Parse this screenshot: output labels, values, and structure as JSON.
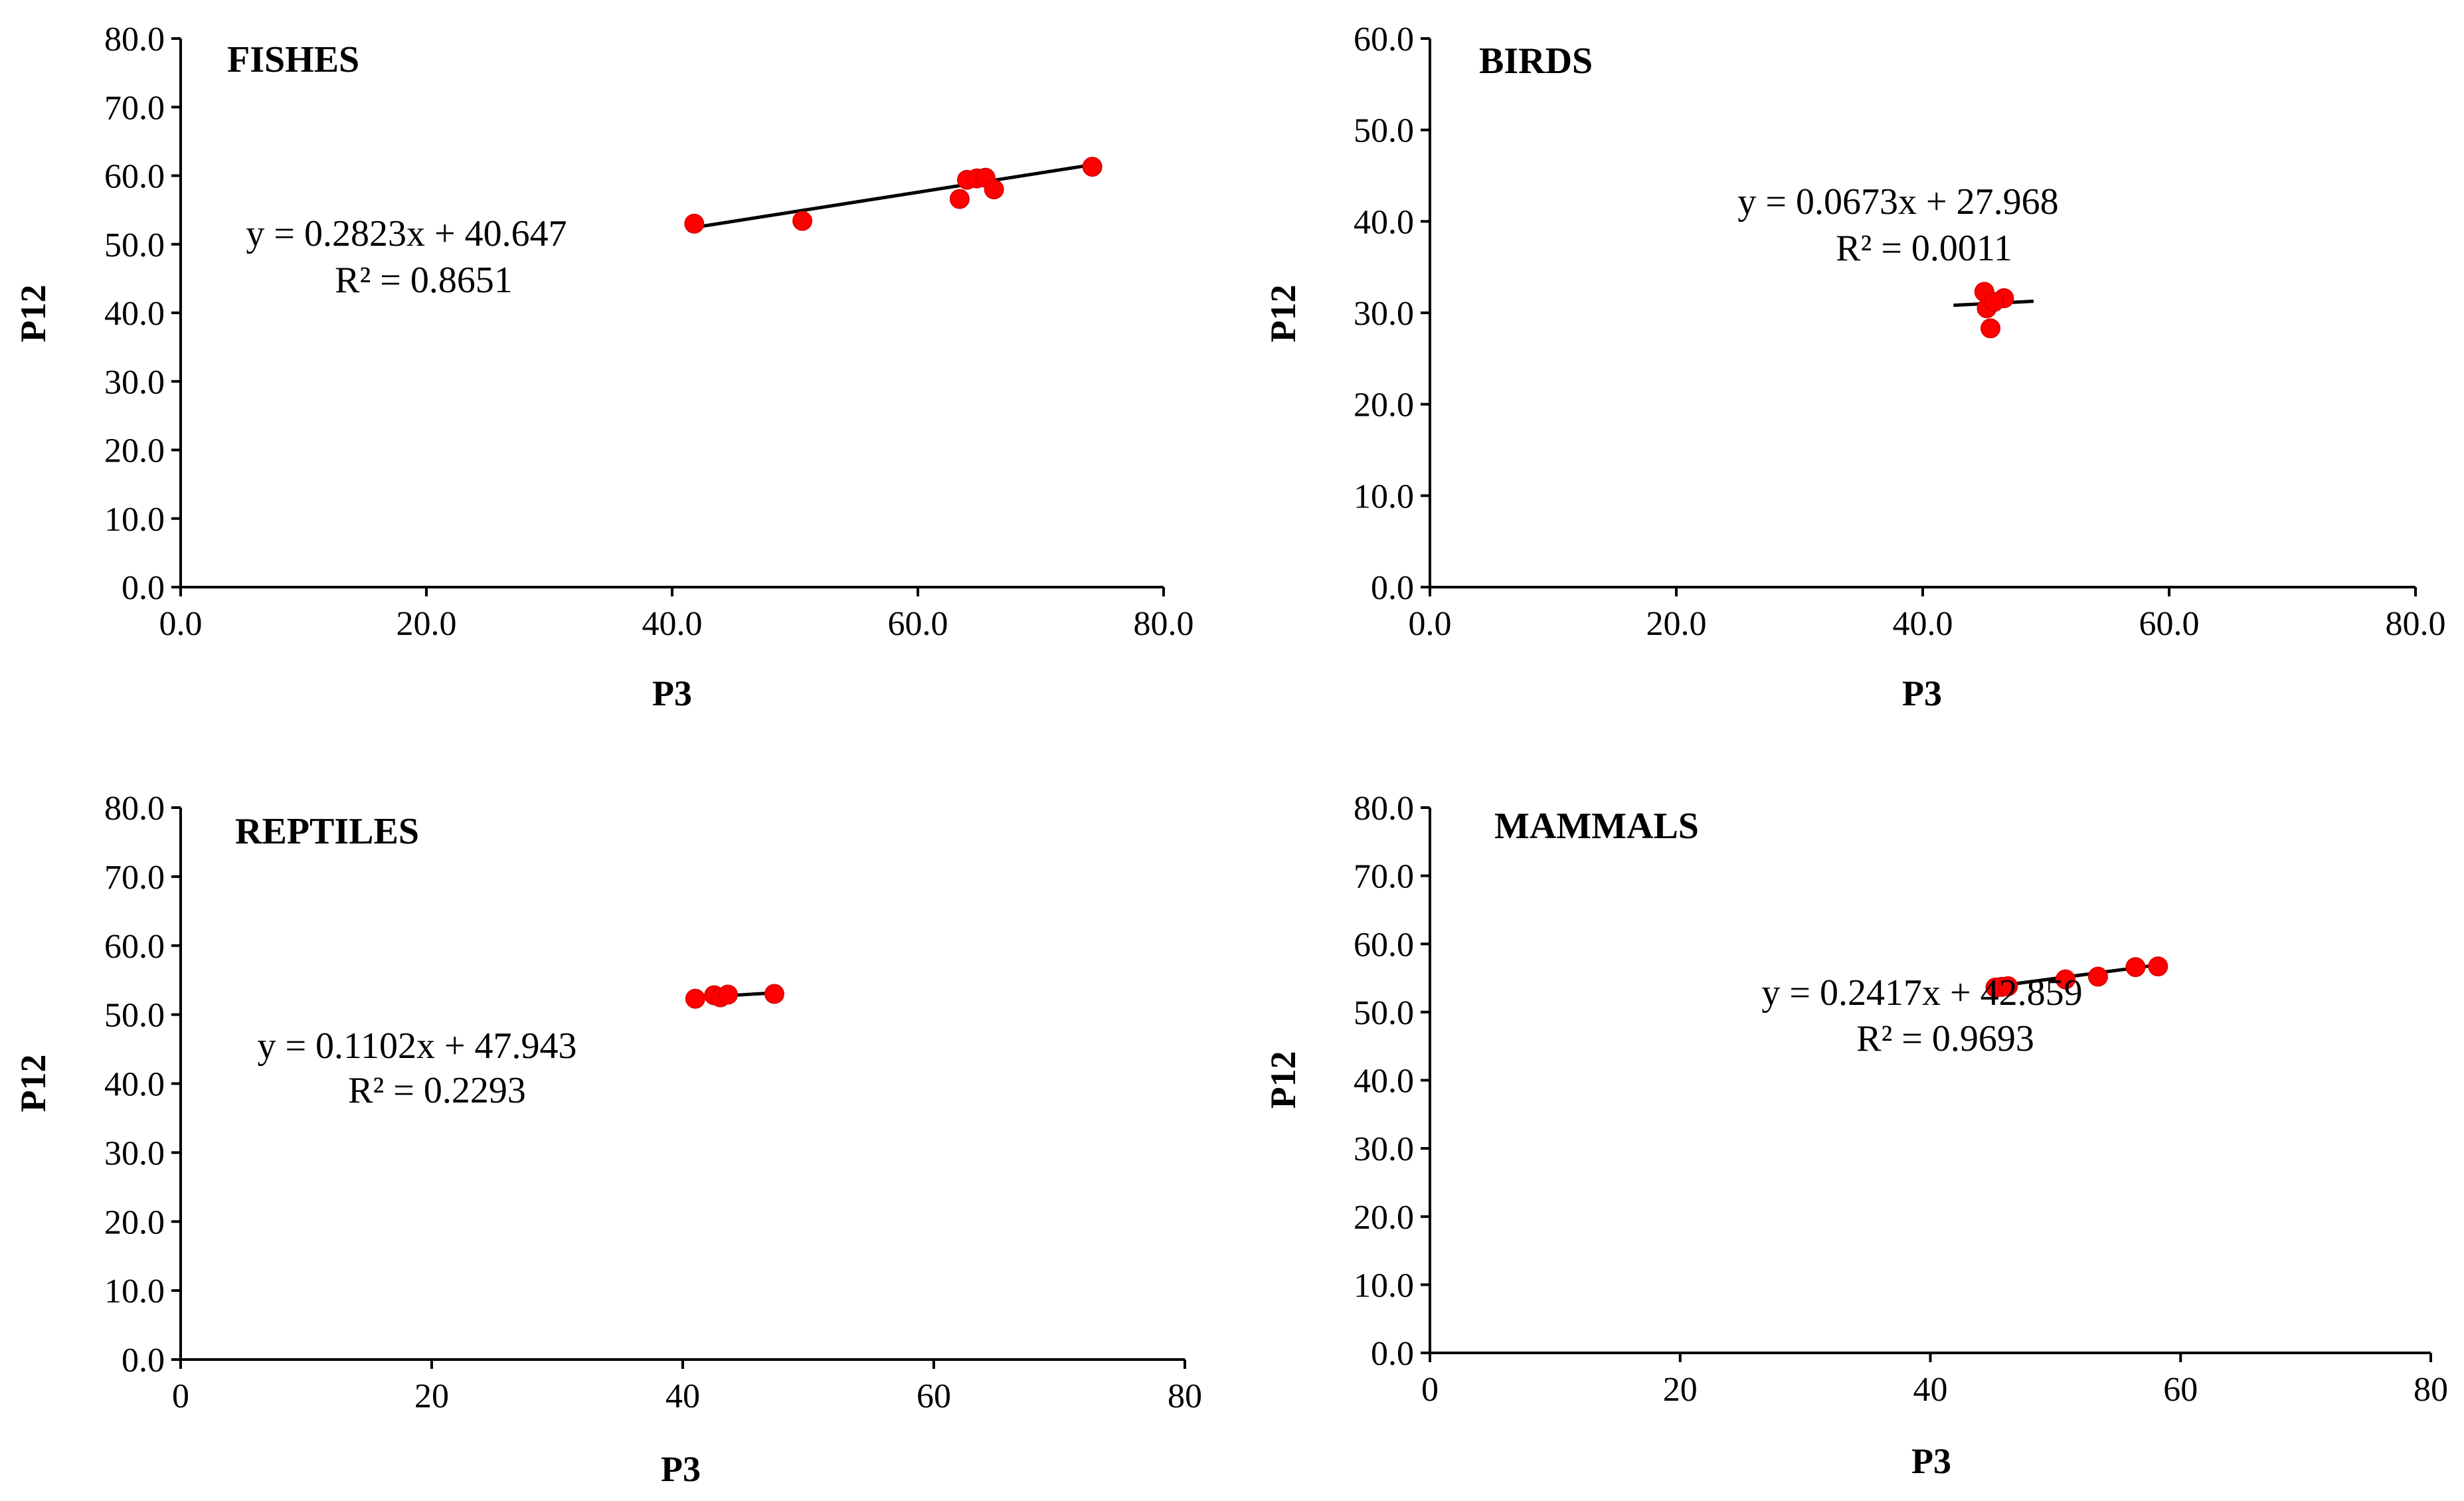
{
  "chart_data": [
    {
      "type": "scatter",
      "title": "FISHES",
      "xlabel": "P3",
      "ylabel": "P12",
      "xlim": [
        0,
        80
      ],
      "ylim": [
        0,
        80
      ],
      "xticks": [
        0,
        20,
        40,
        60,
        80
      ],
      "yticks": [
        0,
        10,
        20,
        30,
        40,
        50,
        60,
        70,
        80
      ],
      "xtick_labels": [
        "0.0",
        "20.0",
        "40.0",
        "60.0",
        "80.0"
      ],
      "ytick_labels": [
        "0.0",
        "10.0",
        "20.0",
        "30.0",
        "40.0",
        "50.0",
        "60.0",
        "70.0",
        "80.0"
      ],
      "points": [
        [
          41.8,
          53.0
        ],
        [
          50.6,
          53.4
        ],
        [
          63.4,
          56.6
        ],
        [
          64.0,
          59.4
        ],
        [
          64.8,
          59.6
        ],
        [
          65.5,
          59.7
        ],
        [
          66.2,
          58.0
        ],
        [
          74.2,
          61.3
        ]
      ],
      "trendline": {
        "slope": 0.2823,
        "intercept": 40.647,
        "x_range": [
          41.8,
          74.2
        ]
      },
      "equation": "y = 0.2823x + 40.647",
      "r2": "R² = 0.8651"
    },
    {
      "type": "scatter",
      "title": "BIRDS",
      "xlabel": "P3",
      "ylabel": "P12",
      "xlim": [
        0,
        80
      ],
      "ylim": [
        0,
        60
      ],
      "xticks": [
        0,
        20,
        40,
        60,
        80
      ],
      "yticks": [
        0,
        10,
        20,
        30,
        40,
        50,
        60
      ],
      "xtick_labels": [
        "0.0",
        "20.0",
        "40.0",
        "60.0",
        "80.0"
      ],
      "ytick_labels": [
        "0.0",
        "10.0",
        "20.0",
        "30.0",
        "40.0",
        "50.0",
        "60.0"
      ],
      "points": [
        [
          45.0,
          32.3
        ],
        [
          45.2,
          30.5
        ],
        [
          45.5,
          28.3
        ],
        [
          46.6,
          31.6
        ],
        [
          45.8,
          31.2
        ]
      ],
      "trendline": {
        "slope": 0.0673,
        "intercept": 27.968,
        "x_range": [
          42.5,
          49.0
        ]
      },
      "equation": "y = 0.0673x + 27.968",
      "r2": "R² = 0.0011"
    },
    {
      "type": "scatter",
      "title": "REPTILES",
      "xlabel": "P3",
      "ylabel": "P12",
      "xlim": [
        0,
        80
      ],
      "ylim": [
        0,
        80
      ],
      "xticks": [
        0,
        20,
        40,
        60,
        80
      ],
      "yticks": [
        0,
        10,
        20,
        30,
        40,
        50,
        60,
        70,
        80
      ],
      "xtick_labels": [
        "0",
        "20",
        "40",
        "60",
        "80"
      ],
      "ytick_labels": [
        "0.0",
        "10.0",
        "20.0",
        "30.0",
        "40.0",
        "50.0",
        "60.0",
        "70.0",
        "80.0"
      ],
      "points": [
        [
          41.0,
          52.3
        ],
        [
          42.5,
          52.8
        ],
        [
          43.0,
          52.5
        ],
        [
          43.6,
          52.9
        ],
        [
          47.3,
          53.0
        ]
      ],
      "trendline": {
        "slope": 0.1102,
        "intercept": 47.943,
        "x_range": [
          41.0,
          47.3
        ]
      },
      "equation": "y = 0.1102x + 47.943",
      "r2": "R² = 0.2293"
    },
    {
      "type": "scatter",
      "title": "MAMMALS",
      "xlabel": "P3",
      "ylabel": "P12",
      "xlim": [
        0,
        80
      ],
      "ylim": [
        0,
        80
      ],
      "xticks": [
        0,
        20,
        40,
        60,
        80
      ],
      "yticks": [
        0,
        10,
        20,
        30,
        40,
        50,
        60,
        70,
        80
      ],
      "xtick_labels": [
        "0",
        "20",
        "40",
        "60",
        "80"
      ],
      "ytick_labels": [
        "0.0",
        "10.0",
        "20.0",
        "30.0",
        "40.0",
        "50.0",
        "60.0",
        "70.0",
        "80.0"
      ],
      "points": [
        [
          45.2,
          53.6
        ],
        [
          45.7,
          53.7
        ],
        [
          46.2,
          53.8
        ],
        [
          50.8,
          54.8
        ],
        [
          53.4,
          55.2
        ],
        [
          56.4,
          56.6
        ],
        [
          58.2,
          56.7
        ]
      ],
      "trendline": {
        "slope": 0.2417,
        "intercept": 42.859,
        "x_range": [
          45.2,
          58.2
        ]
      },
      "equation": "y = 0.2417x + 42.859",
      "r2": "R² = 0.9693"
    }
  ]
}
